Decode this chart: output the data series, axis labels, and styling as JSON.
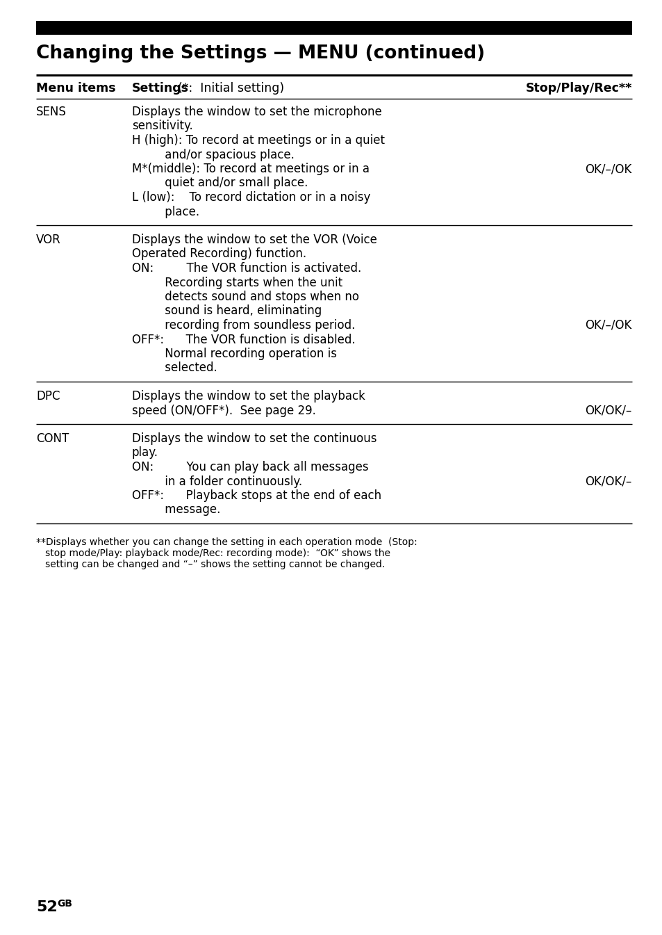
{
  "title": "Changing the Settings — MENU (continued)",
  "header_col1": "Menu items",
  "header_col2": "Settings",
  "header_col2b": "(*:  Initial setting)",
  "header_col3": "Stop/Play/Rec**",
  "background_color": "#ffffff",
  "black_bar_color": "#000000",
  "text_color": "#000000",
  "rows": [
    {
      "menu_item": "SENS",
      "settings_lines": [
        {
          "indent": 0,
          "text": "Displays the window to set the microphone"
        },
        {
          "indent": 0,
          "text": "sensitivity."
        },
        {
          "indent": 0,
          "text": "H (high): To record at meetings or in a quiet"
        },
        {
          "indent": 1,
          "text": "         and/or spacious place."
        },
        {
          "indent": 0,
          "text": "M*(middle): To record at meetings or in a"
        },
        {
          "indent": 1,
          "text": "         quiet and/or small place."
        },
        {
          "indent": 0,
          "text": "L (low):    To record dictation or in a noisy"
        },
        {
          "indent": 1,
          "text": "         place."
        }
      ],
      "stop_play_rec": "OK/–/OK",
      "stop_play_rec_line": 4
    },
    {
      "menu_item": "VOR",
      "settings_lines": [
        {
          "indent": 0,
          "text": "Displays the window to set the VOR (Voice"
        },
        {
          "indent": 0,
          "text": "Operated Recording) function."
        },
        {
          "indent": 0,
          "text": "ON:         The VOR function is activated."
        },
        {
          "indent": 1,
          "text": "         Recording starts when the unit"
        },
        {
          "indent": 1,
          "text": "         detects sound and stops when no"
        },
        {
          "indent": 1,
          "text": "         sound is heard, eliminating"
        },
        {
          "indent": 1,
          "text": "         recording from soundless period."
        },
        {
          "indent": 0,
          "text": "OFF*:      The VOR function is disabled."
        },
        {
          "indent": 1,
          "text": "         Normal recording operation is"
        },
        {
          "indent": 1,
          "text": "         selected."
        }
      ],
      "stop_play_rec": "OK/–/OK",
      "stop_play_rec_line": 6
    },
    {
      "menu_item": "DPC",
      "settings_lines": [
        {
          "indent": 0,
          "text": "Displays the window to set the playback"
        },
        {
          "indent": 0,
          "text": "speed (ON/OFF*).  See page 29."
        }
      ],
      "stop_play_rec": "OK/OK/–",
      "stop_play_rec_line": 1
    },
    {
      "menu_item": "CONT",
      "settings_lines": [
        {
          "indent": 0,
          "text": "Displays the window to set the continuous"
        },
        {
          "indent": 0,
          "text": "play."
        },
        {
          "indent": 0,
          "text": "ON:         You can play back all messages"
        },
        {
          "indent": 1,
          "text": "         in a folder continuously."
        },
        {
          "indent": 0,
          "text": "OFF*:      Playback stops at the end of each"
        },
        {
          "indent": 1,
          "text": "         message."
        }
      ],
      "stop_play_rec": "OK/OK/–",
      "stop_play_rec_line": 3
    }
  ],
  "footnote_lines": [
    "**Displays whether you can change the setting in each operation mode  (Stop:",
    "   stop mode/Play: playback mode/Rec: recording mode):  “OK” shows the",
    "   setting can be changed and “–” shows the setting cannot be changed."
  ],
  "page_number": "52",
  "page_suffix": "GB"
}
